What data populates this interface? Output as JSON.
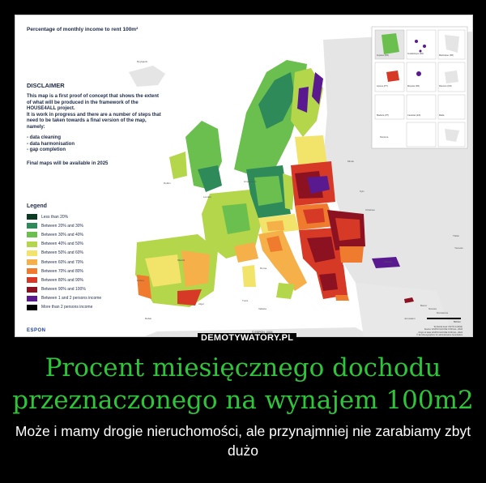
{
  "map": {
    "title": "Percentage of monthly income to rent 100m²",
    "disclaimer_heading": "DISCLAIMER",
    "disclaimer_text": [
      "This map is a first proof of concept that shows the extent",
      "of what will be produced in the framework of the",
      "HOUSE4ALL project.",
      "It is work in progress and there are a number of steps that",
      "need to be taken towards a final version of the map,",
      "namely:"
    ],
    "disclaimer_items": [
      "- data cleaning",
      "- data harmonisation",
      "- gap completion"
    ],
    "final_note": "Final maps will be available in 2025",
    "legend_title": "Legend",
    "legend": [
      {
        "label": "Less than 20%",
        "color": "#0b3b24"
      },
      {
        "label": "Between 20% and 30%",
        "color": "#2f8a5a"
      },
      {
        "label": "Between 30% and 40%",
        "color": "#6bbf4f"
      },
      {
        "label": "Between 40% and 50%",
        "color": "#b4d64a"
      },
      {
        "label": "Between 50% and 60%",
        "color": "#f2e36a"
      },
      {
        "label": "Between 60% and 70%",
        "color": "#f5b04a"
      },
      {
        "label": "Between 70% and 80%",
        "color": "#ef7b2e"
      },
      {
        "label": "Between 80% and 90%",
        "color": "#d63a26"
      },
      {
        "label": "Between 90% and 100%",
        "color": "#8c1221"
      },
      {
        "label": "Between 1 and 2 persons income",
        "color": "#5a1a8f"
      },
      {
        "label": "More than 2 persons income",
        "color": "#000000"
      }
    ],
    "logo": "ESPON",
    "copyright": "© ESPON, 2024",
    "credits": [
      "Territorial level: NUTS 3 (2016)",
      "Source: ESPON HOUSE FOR ALL, 2024",
      "Origin of data: ESPON HOUSE FOR ALL, 2024",
      "© EuroGeographics for administrative boundaries"
    ],
    "scale_label": "500 km",
    "cities": [
      {
        "name": "Reykjavík"
      },
      {
        "name": "Dublin"
      },
      {
        "name": "London"
      },
      {
        "name": "Amsterdam"
      },
      {
        "name": "Moskva"
      },
      {
        "name": "Minsk"
      },
      {
        "name": "Kyiv"
      },
      {
        "name": "Chisinau"
      },
      {
        "name": "Ankara"
      },
      {
        "name": "Tbilisi"
      },
      {
        "name": "Yerevan"
      },
      {
        "name": "Lisboa"
      },
      {
        "name": "Madrid"
      },
      {
        "name": "Roma"
      },
      {
        "name": "Tunis"
      },
      {
        "name": "Valletta"
      },
      {
        "name": "Alger"
      },
      {
        "name": "Rabat"
      },
      {
        "name": "Nicosia"
      },
      {
        "name": "Beirut"
      },
      {
        "name": "Damascus"
      },
      {
        "name": "Jerusalem"
      }
    ],
    "insets": [
      "Guadeloupe (FR)",
      "Martinique (FR)",
      "Guyane (FR)",
      "Mayotte (FR)",
      "Réunion (FR)",
      "Açores (PT)",
      "Madeira (PT)",
      "Canarias (ES)",
      "Malta"
    ]
  },
  "watermark": "DEMOTYWATORY.PL",
  "headline": "Procent miesięcznego dochodu przeznaczonego na wynajem 100m2",
  "caption": "Może i mamy drogie nieruchomości, ale przynajmniej nie zarabiamy zbyt dużo"
}
